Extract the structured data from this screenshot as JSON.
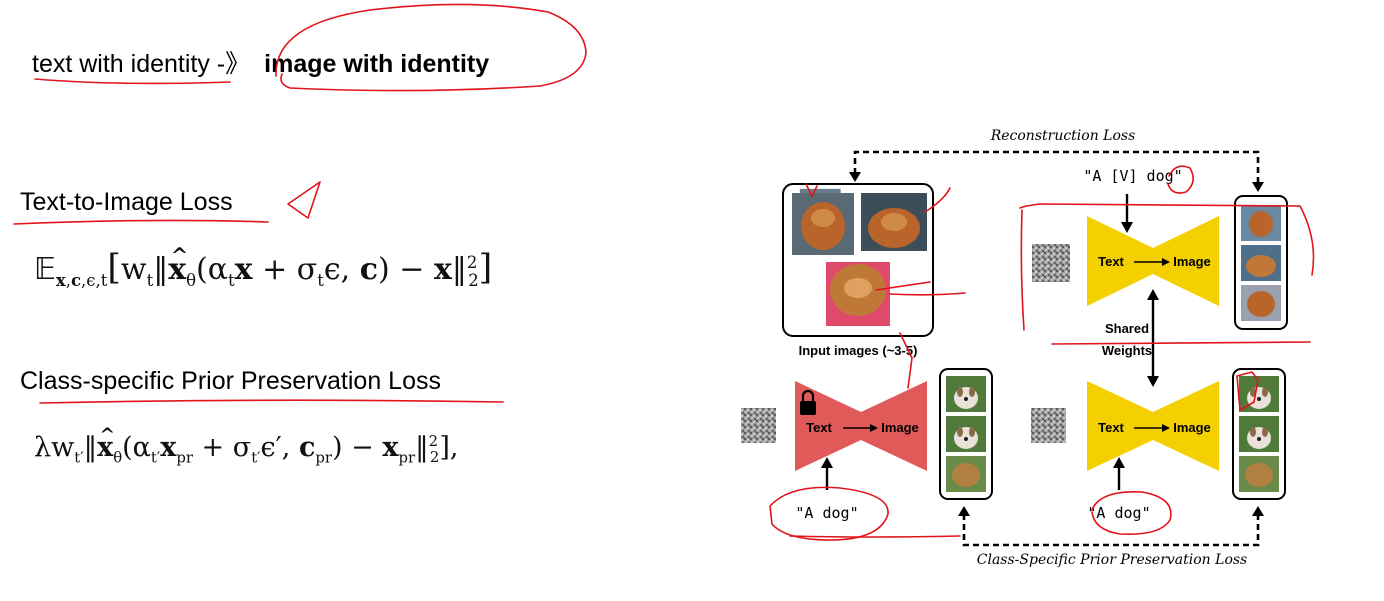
{
  "slide": {
    "title_plain": "text with identity -》",
    "title_bold": "image with identity",
    "t2i_heading": "Text-to-Image Loss",
    "prior_heading": "Class-specific Prior Preservation Loss"
  },
  "equations": {
    "t2i": "E_{x,c,ε,t}[ w_t || x̂_θ(α_t x + σ_t ε, c) − x ||²₂ ]",
    "prior": "λ w_{t'} || x̂_θ(α_{t'} x_pr + σ_{t'} ε', c_pr) − x_pr ||²₂ ],"
  },
  "diagram": {
    "reconstruction_loss": "Reconstruction Loss",
    "prior_loss": "Class-Specific Prior Preservation Loss",
    "input_images_label": "Input images (~3-5)",
    "shared_weights_line1": "Shared",
    "shared_weights_line2": "Weights",
    "prompt_identity": "\"A [V] dog\"",
    "prompt_class_left": "\"A dog\"",
    "prompt_class_right": "\"A dog\"",
    "model_text": "Text",
    "model_image": "Image",
    "colors": {
      "frozen_model": "#e15a5a",
      "trainable_model": "#f5d000",
      "annotation_ink": "#e0141a",
      "fur": "#b8642a"
    },
    "icons": [
      "lock-icon",
      "noise-icon",
      "dog-photo"
    ]
  }
}
